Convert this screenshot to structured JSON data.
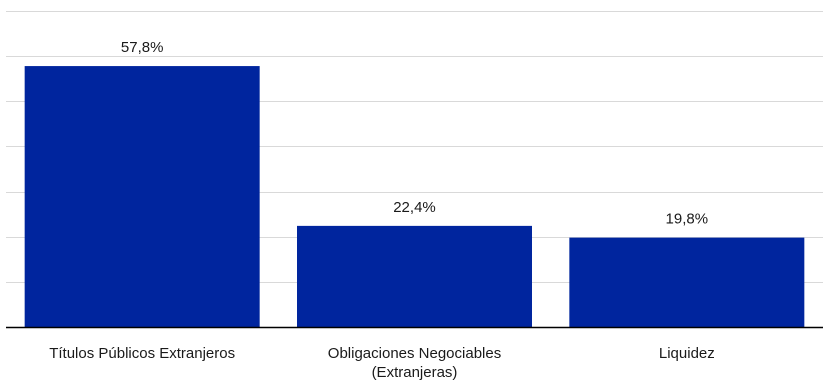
{
  "chart_data": {
    "type": "bar",
    "categories": [
      [
        "Títulos Públicos Extranjeros"
      ],
      [
        "Obligaciones Negociables",
        "(Extranjeras)"
      ],
      [
        "Liquidez"
      ]
    ],
    "values": [
      57.8,
      22.4,
      19.8
    ],
    "data_labels": [
      "57,8%",
      "22,4%",
      "19,8%"
    ],
    "ylim": [
      0,
      70
    ],
    "grid": true,
    "legend": "none"
  },
  "colors": {
    "bar": "#00259e",
    "grid": "#d9d9d9",
    "axis": "#000000",
    "text": "#1a1a1a"
  }
}
